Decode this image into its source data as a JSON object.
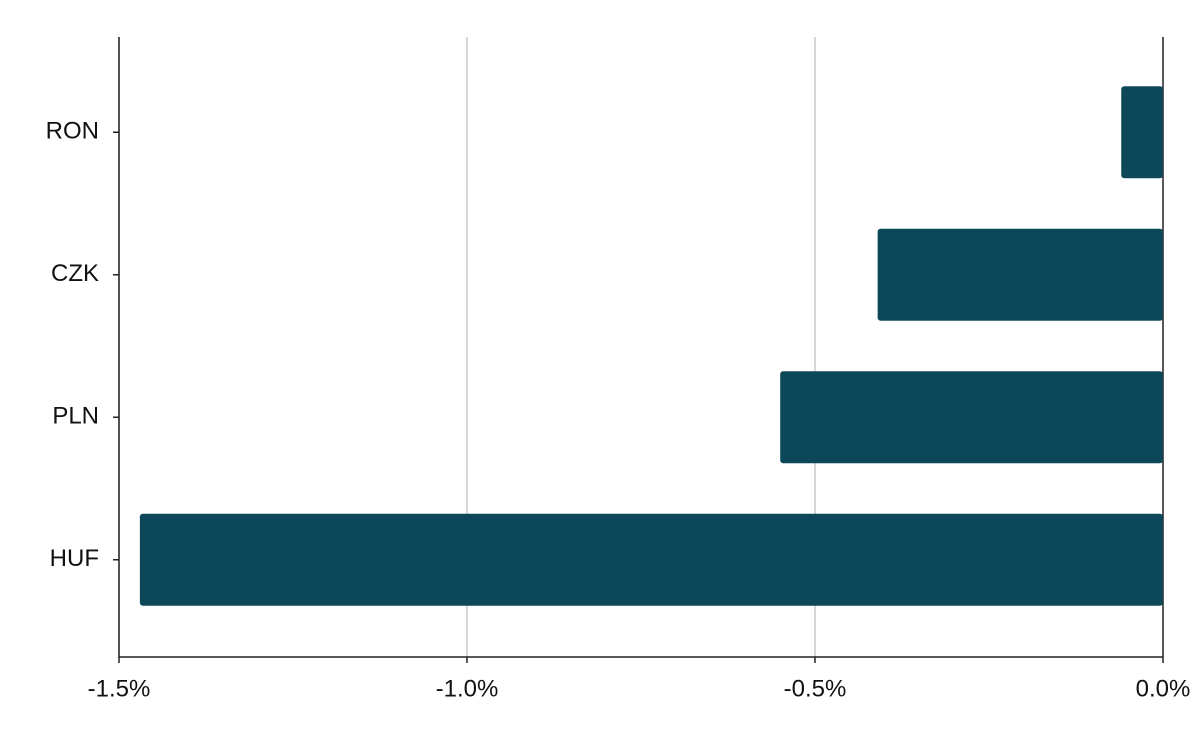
{
  "chart_data": {
    "type": "hbar",
    "categories": [
      "RON",
      "CZK",
      "PLN",
      "HUF"
    ],
    "values": [
      -0.06,
      -0.41,
      -0.55,
      -1.47
    ],
    "color": "#0d4859",
    "xlim": [
      -1.5,
      0.0
    ],
    "xticks": [
      {
        "value": -1.5,
        "label": "-1.5%"
      },
      {
        "value": -1.0,
        "label": "-1.0%"
      },
      {
        "value": -0.5,
        "label": "-0.5%"
      },
      {
        "value": 0.0,
        "label": "0.0%"
      }
    ],
    "grid": true
  }
}
